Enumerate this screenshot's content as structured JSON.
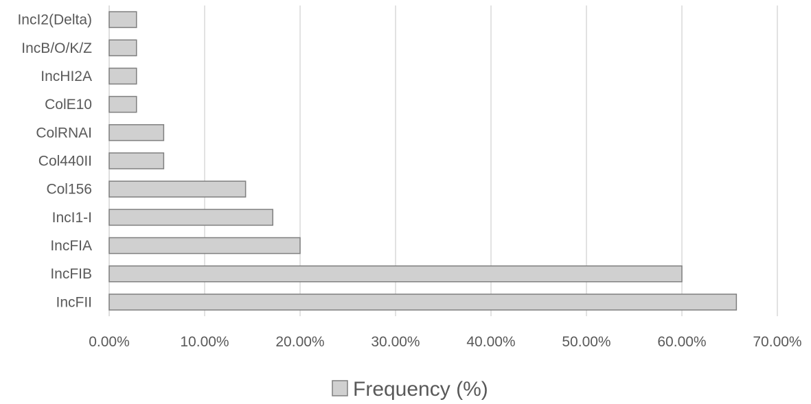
{
  "chart_data": {
    "type": "bar",
    "orientation": "horizontal",
    "categories": [
      "IncI2(Delta)",
      "IncB/O/K/Z",
      "IncHI2A",
      "ColE10",
      "ColRNAI",
      "Col440II",
      "Col156",
      "IncI1-I",
      "IncFIA",
      "IncFIB",
      "IncFII"
    ],
    "series": [
      {
        "name": "Frequency (%)",
        "values": [
          2.86,
          2.86,
          2.86,
          2.86,
          5.71,
          5.71,
          14.29,
          17.14,
          20.0,
          60.0,
          65.71
        ]
      }
    ],
    "xlim": [
      0,
      70
    ],
    "xticks": [
      "0.00%",
      "10.00%",
      "20.00%",
      "30.00%",
      "40.00%",
      "50.00%",
      "60.00%",
      "70.00%"
    ],
    "title": "",
    "xlabel": "",
    "ylabel": "",
    "grid": "vertical",
    "legend": "bottom-center",
    "colors": {
      "bar_fill": "#d0d0d0",
      "bar_stroke": "#7f7f7f",
      "grid": "#d9d9d9",
      "text": "#595959"
    }
  }
}
